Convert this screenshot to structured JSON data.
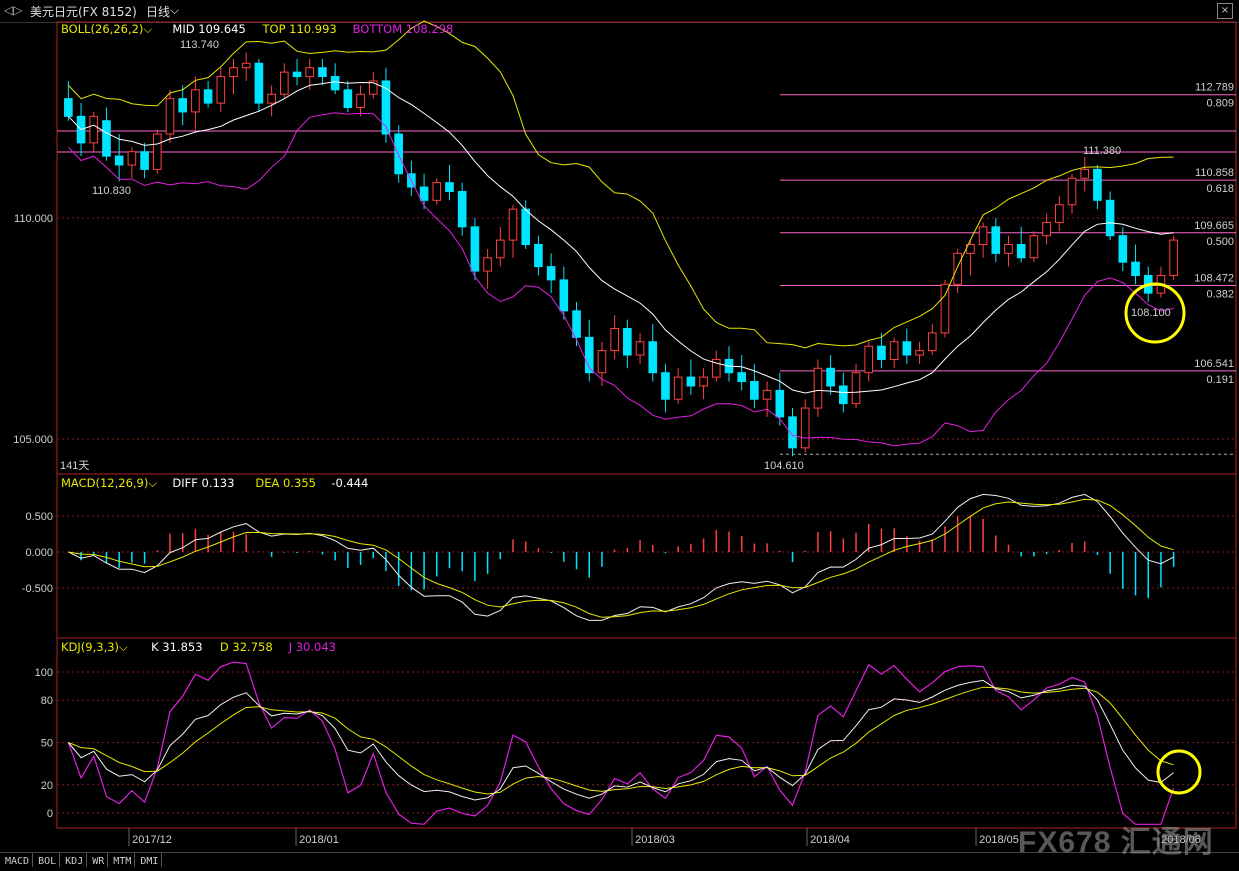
{
  "window": {
    "title": "美元日元(FX 8152)",
    "period": "日线",
    "chevron": "chevron-down-icon",
    "close": "×"
  },
  "colors": {
    "up": "#ff4040",
    "down": "#00e5ff",
    "mid": "#ffffff",
    "top": "#e8e800",
    "bottom": "#e020e0",
    "fib": "#ff66cc",
    "grid": "#8b1a1a",
    "frame": "#b02020",
    "white_line": "#f0f0f0"
  },
  "boll": {
    "name": "BOLL(26,26,2)",
    "mid_label": "MID 109.645",
    "top_label": "TOP 110.993",
    "bottom_label": "BOTTOM 108.298",
    "high_label": "113.740",
    "left_low_label": "110.830",
    "low_label": "104.610",
    "right_high_label": "111.380",
    "right_low_label": "108.100",
    "days_label": "141天",
    "y_ticks": [
      "110.000",
      "105.000"
    ]
  },
  "fib_levels": [
    {
      "price": "112.789",
      "ratio": "0.809"
    },
    {
      "price": "110.858",
      "ratio": "0.618"
    },
    {
      "price": "109.665",
      "ratio": "0.500"
    },
    {
      "price": "108.472",
      "ratio": "0.382"
    },
    {
      "price": "106.541",
      "ratio": "0.191"
    }
  ],
  "macd": {
    "name": "MACD(12,26,9)",
    "diff_label": "DIFF 0.133",
    "dea_label": "DEA 0.355",
    "macd_label": "-0.444",
    "y_ticks": [
      "0.500",
      "0.000",
      "-0.500"
    ]
  },
  "kdj": {
    "name": "KDJ(9,3,3)",
    "k_label": "K 31.853",
    "d_label": "D 32.758",
    "j_label": "J 30.043",
    "y_ticks": [
      "100",
      "80",
      "50",
      "20",
      "0"
    ]
  },
  "x_axis": {
    "labels": [
      "2017/12",
      "2018/01",
      "2018/03",
      "2018/04",
      "2018/05",
      "2018/06"
    ]
  },
  "bottom_tabs": [
    "MACD",
    "BOL",
    "KDJ",
    "WR",
    "MTM",
    "DMI"
  ],
  "watermark": "FX678 汇通网",
  "chart_data": [
    {
      "type": "candlestick",
      "series_name": "美元日元(FX 8152) 日线",
      "x_labels": [
        "2017/12",
        "2018/01",
        "2018/03",
        "2018/04",
        "2018/05",
        "2018/06"
      ],
      "ylim": [
        104.0,
        115.0
      ],
      "y_ticks": [
        105.0,
        110.0
      ],
      "candles": [
        [
          112.7,
          113.1,
          112.2,
          112.3
        ],
        [
          112.3,
          112.6,
          111.4,
          111.7
        ],
        [
          111.7,
          112.4,
          111.5,
          112.3
        ],
        [
          112.2,
          112.5,
          111.3,
          111.4
        ],
        [
          111.4,
          111.9,
          110.83,
          111.2
        ],
        [
          111.2,
          111.6,
          110.9,
          111.5
        ],
        [
          111.5,
          111.7,
          110.9,
          111.1
        ],
        [
          111.1,
          112.0,
          111.0,
          111.9
        ],
        [
          111.9,
          112.9,
          111.7,
          112.7
        ],
        [
          112.7,
          113.0,
          112.1,
          112.4
        ],
        [
          112.4,
          113.2,
          112.0,
          112.9
        ],
        [
          112.9,
          113.1,
          112.5,
          112.6
        ],
        [
          112.6,
          113.4,
          112.4,
          113.2
        ],
        [
          113.2,
          113.6,
          112.8,
          113.4
        ],
        [
          113.4,
          113.74,
          113.1,
          113.5
        ],
        [
          113.5,
          113.6,
          112.4,
          112.6
        ],
        [
          112.6,
          113.0,
          112.3,
          112.8
        ],
        [
          112.8,
          113.5,
          112.7,
          113.3
        ],
        [
          113.3,
          113.6,
          113.0,
          113.2
        ],
        [
          113.2,
          113.6,
          112.9,
          113.4
        ],
        [
          113.4,
          113.6,
          113.0,
          113.2
        ],
        [
          113.2,
          113.5,
          112.8,
          112.9
        ],
        [
          112.9,
          113.1,
          112.4,
          112.5
        ],
        [
          112.5,
          113.0,
          112.3,
          112.8
        ],
        [
          112.8,
          113.3,
          112.7,
          113.1
        ],
        [
          113.1,
          113.4,
          111.7,
          111.9
        ],
        [
          111.9,
          112.1,
          110.8,
          111.0
        ],
        [
          111.0,
          111.3,
          110.5,
          110.7
        ],
        [
          110.7,
          111.0,
          110.2,
          110.4
        ],
        [
          110.4,
          110.9,
          110.3,
          110.8
        ],
        [
          110.8,
          111.2,
          110.4,
          110.6
        ],
        [
          110.6,
          110.8,
          109.6,
          109.8
        ],
        [
          109.8,
          110.0,
          108.6,
          108.8
        ],
        [
          108.8,
          109.3,
          108.4,
          109.1
        ],
        [
          109.1,
          109.8,
          108.9,
          109.5
        ],
        [
          109.5,
          110.3,
          109.1,
          110.2
        ],
        [
          110.2,
          110.4,
          109.3,
          109.4
        ],
        [
          109.4,
          109.6,
          108.7,
          108.9
        ],
        [
          108.9,
          109.2,
          108.3,
          108.6
        ],
        [
          108.6,
          108.9,
          107.7,
          107.9
        ],
        [
          107.9,
          108.1,
          107.1,
          107.3
        ],
        [
          107.3,
          107.7,
          106.3,
          106.5
        ],
        [
          106.5,
          107.2,
          106.2,
          107.0
        ],
        [
          107.0,
          107.8,
          106.8,
          107.5
        ],
        [
          107.5,
          107.7,
          106.6,
          106.9
        ],
        [
          106.9,
          107.4,
          106.7,
          107.2
        ],
        [
          107.2,
          107.6,
          106.3,
          106.5
        ],
        [
          106.5,
          106.7,
          105.6,
          105.9
        ],
        [
          105.9,
          106.6,
          105.8,
          106.4
        ],
        [
          106.4,
          106.8,
          106.0,
          106.2
        ],
        [
          106.2,
          106.6,
          105.9,
          106.4
        ],
        [
          106.4,
          107.0,
          106.3,
          106.8
        ],
        [
          106.8,
          107.1,
          106.3,
          106.5
        ],
        [
          106.5,
          106.9,
          106.1,
          106.3
        ],
        [
          106.3,
          106.7,
          105.7,
          105.9
        ],
        [
          105.9,
          106.3,
          105.5,
          106.1
        ],
        [
          106.1,
          106.5,
          105.3,
          105.5
        ],
        [
          105.5,
          105.7,
          104.61,
          104.8
        ],
        [
          104.8,
          105.9,
          104.7,
          105.7
        ],
        [
          105.7,
          106.8,
          105.5,
          106.6
        ],
        [
          106.6,
          106.9,
          106.0,
          106.2
        ],
        [
          106.2,
          106.5,
          105.6,
          105.8
        ],
        [
          105.8,
          106.7,
          105.7,
          106.5
        ],
        [
          106.5,
          107.2,
          106.3,
          107.1
        ],
        [
          107.1,
          107.4,
          106.6,
          106.8
        ],
        [
          106.8,
          107.3,
          106.6,
          107.2
        ],
        [
          107.2,
          107.5,
          106.7,
          106.9
        ],
        [
          106.9,
          107.2,
          106.7,
          107.0
        ],
        [
          107.0,
          107.6,
          106.9,
          107.4
        ],
        [
          107.4,
          108.6,
          107.3,
          108.5
        ],
        [
          108.5,
          109.3,
          108.3,
          109.2
        ],
        [
          109.2,
          109.5,
          108.7,
          109.4
        ],
        [
          109.4,
          109.9,
          109.1,
          109.8
        ],
        [
          109.8,
          110.0,
          109.0,
          109.2
        ],
        [
          109.2,
          109.6,
          108.9,
          109.4
        ],
        [
          109.4,
          109.8,
          109.0,
          109.1
        ],
        [
          109.1,
          109.7,
          109.0,
          109.6
        ],
        [
          109.6,
          110.1,
          109.4,
          109.9
        ],
        [
          109.9,
          110.5,
          109.7,
          110.3
        ],
        [
          110.3,
          111.0,
          110.1,
          110.9
        ],
        [
          110.9,
          111.38,
          110.6,
          111.1
        ],
        [
          111.1,
          111.2,
          110.2,
          110.4
        ],
        [
          110.4,
          110.6,
          109.5,
          109.6
        ],
        [
          109.6,
          109.8,
          108.8,
          109.0
        ],
        [
          109.0,
          109.4,
          108.5,
          108.7
        ],
        [
          108.7,
          108.9,
          108.1,
          108.3
        ],
        [
          108.3,
          108.9,
          108.2,
          108.7
        ],
        [
          108.7,
          109.6,
          108.6,
          109.5
        ]
      ]
    },
    {
      "type": "line",
      "title": "MACD(12,26,9)",
      "series": [
        {
          "name": "DIFF",
          "last": 0.133
        },
        {
          "name": "DEA",
          "last": 0.355
        },
        {
          "name": "MACD",
          "last": -0.444
        }
      ],
      "y_ticks": [
        0.5,
        0.0,
        -0.5
      ]
    },
    {
      "type": "line",
      "title": "KDJ(9,3,3)",
      "series": [
        {
          "name": "K",
          "last": 31.853
        },
        {
          "name": "D",
          "last": 32.758
        },
        {
          "name": "J",
          "last": 30.043
        }
      ],
      "y_ticks": [
        100,
        80,
        50,
        20,
        0
      ]
    }
  ]
}
